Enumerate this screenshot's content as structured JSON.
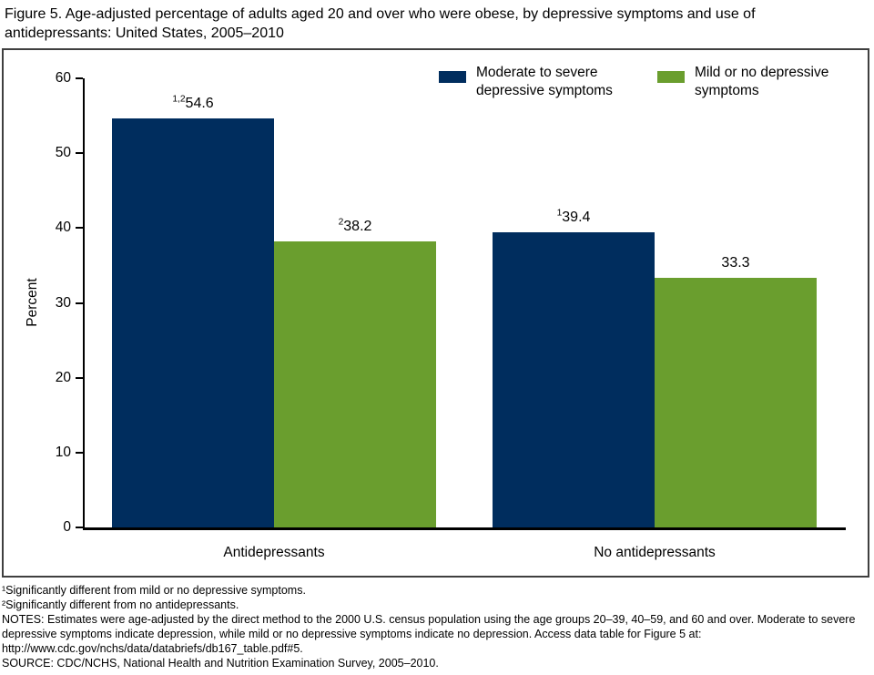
{
  "title": "Figure 5. Age-adjusted percentage of adults aged 20 and over who were obese, by depressive symptoms and use of antidepressants: United States, 2005–2010",
  "chart_data": {
    "type": "bar",
    "title": "Figure 5. Age-adjusted percentage of adults aged 20 and over who were obese, by depressive symptoms and use of antidepressants: United States, 2005–2010",
    "categories": [
      "Antidepressants",
      "No antidepressants"
    ],
    "series": [
      {
        "name": "Moderate to severe depressive symptoms",
        "color": "#002d5e",
        "values": [
          54.6,
          39.4
        ],
        "value_labels": [
          "54.6",
          "39.4"
        ],
        "footnote_markers": [
          "1,2",
          "1"
        ]
      },
      {
        "name": "Mild or no depressive symptoms",
        "color": "#6a9e2e",
        "values": [
          38.2,
          33.3
        ],
        "value_labels": [
          "38.2",
          "33.3"
        ],
        "footnote_markers": [
          "2",
          ""
        ]
      }
    ],
    "xlabel": "",
    "ylabel": "Percent",
    "ylim": [
      0,
      60
    ],
    "yticks": [
      0,
      10,
      20,
      30,
      40,
      50,
      60
    ],
    "grid": false,
    "legend_position": "top-right"
  },
  "footnotes": {
    "fn1": "¹Significantly different from mild or no depressive symptoms.",
    "fn2": "²Significantly different from no antidepressants.",
    "notes": "NOTES: Estimates were age-adjusted by the direct method to the 2000 U.S. census population using the age groups 20–39, 40–59, and 60 and over. Moderate to severe depressive symptoms indicate depression, while mild or no depressive symptoms indicate no depression. Access data table for Figure 5 at: http://www.cdc.gov/nchs/data/databriefs/db167_table.pdf#5.",
    "source": "SOURCE: CDC/NCHS, National Health and Nutrition Examination Survey, 2005–2010."
  },
  "colors": {
    "navy": "#002d5e",
    "green": "#6a9e2e",
    "axis": "#000000",
    "frame_border": "#3f3f3f"
  }
}
